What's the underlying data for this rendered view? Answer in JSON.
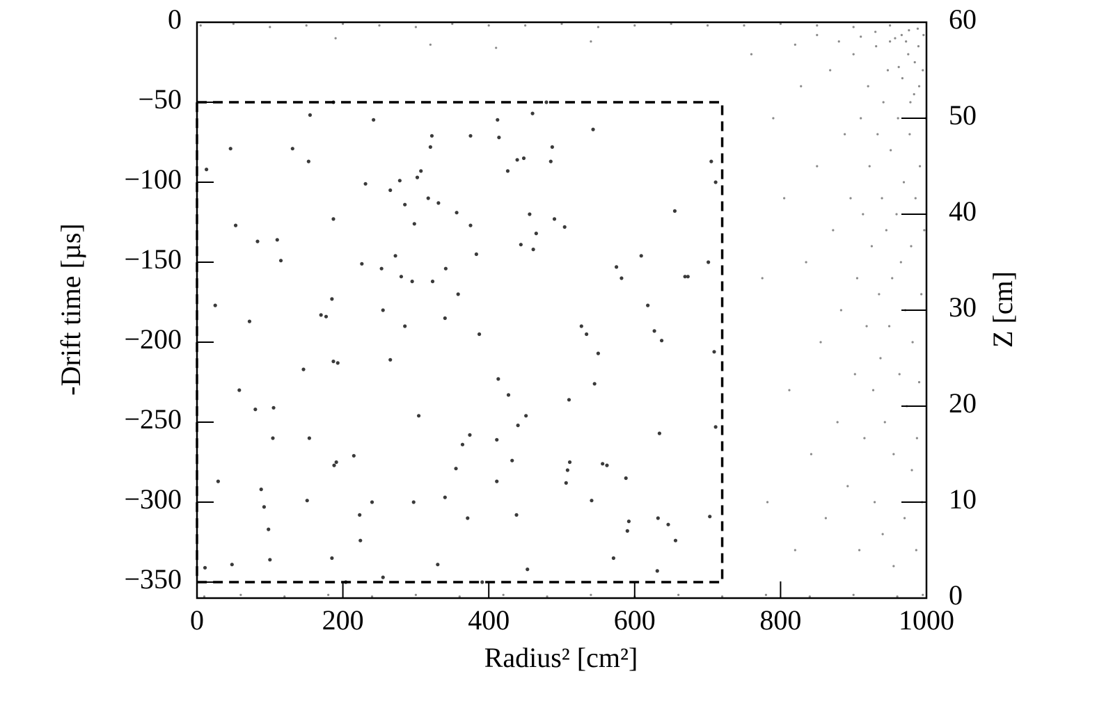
{
  "chart_data": {
    "type": "scatter",
    "xlabel": "Radius² [cm²]",
    "ylabel": "-Drift time [µs]",
    "y2label": "Z [cm]",
    "xlim": [
      0,
      1000
    ],
    "xticks": [
      0,
      200,
      400,
      600,
      800,
      1000
    ],
    "ylim": [
      -360,
      0
    ],
    "yticks": [
      {
        "value": -350,
        "label": "−350"
      },
      {
        "value": -300,
        "label": "−300"
      },
      {
        "value": -250,
        "label": "−250"
      },
      {
        "value": -200,
        "label": "−200"
      },
      {
        "value": -150,
        "label": "−150"
      },
      {
        "value": -100,
        "label": "−100"
      },
      {
        "value": -50,
        "label": "−50"
      },
      0
    ],
    "y2lim": [
      0,
      60
    ],
    "y2ticks": [
      0,
      10,
      20,
      30,
      40,
      50,
      60
    ],
    "box": {
      "x": [
        0,
        720
      ],
      "y": [
        -350,
        -50
      ]
    },
    "series": [
      {
        "color": "#3a3a3a",
        "size": 2.6,
        "x": [
          13,
          46,
          53,
          83,
          110,
          115,
          72,
          25,
          58,
          80,
          105,
          104,
          146,
          154,
          131,
          153,
          155,
          187,
          187,
          185,
          170,
          177,
          187,
          193,
          188,
          191,
          151,
          88,
          92,
          98,
          100,
          48,
          29,
          11,
          185,
          223,
          224,
          215,
          240,
          255,
          204,
          242,
          231,
          265,
          226,
          253,
          272,
          280,
          295,
          255,
          265,
          285,
          278,
          285,
          298,
          302,
          307,
          317,
          331,
          320,
          322,
          323,
          341,
          340,
          356,
          358,
          304,
          297,
          330,
          340,
          355,
          364,
          374,
          371,
          391,
          375,
          375,
          383,
          387,
          412,
          414,
          426,
          439,
          448,
          444,
          461,
          456,
          465,
          460,
          479,
          485,
          487,
          490,
          504,
          413,
          427,
          411,
          432,
          440,
          451,
          411,
          438,
          453,
          510,
          511,
          508,
          506,
          527,
          534,
          550,
          545,
          541,
          543,
          556,
          562,
          571,
          575,
          582,
          588,
          592,
          590,
          609,
          618,
          627,
          637,
          634,
          632,
          631,
          646,
          656,
          655,
          669,
          673,
          701,
          703,
          705,
          711,
          709,
          711
        ],
        "y": [
          -92,
          -79,
          -127,
          -137,
          -136,
          -149,
          -187,
          -177,
          -230,
          -242,
          -241,
          -260,
          -217,
          -260,
          -79,
          -87,
          -58,
          -50,
          -123,
          -173,
          -183,
          -184,
          -212,
          -213,
          -277,
          -275,
          -299,
          -292,
          -303,
          -317,
          -336,
          -339,
          -287,
          -341,
          -335,
          -308,
          -324,
          -271,
          -300,
          -347,
          -350,
          -61,
          -101,
          -105,
          -151,
          -154,
          -146,
          -159,
          -162,
          -180,
          -211,
          -190,
          -99,
          -114,
          -126,
          -97,
          -93,
          -110,
          -113,
          -78,
          -71,
          -162,
          -154,
          -185,
          -119,
          -170,
          -246,
          -300,
          -339,
          -297,
          -279,
          -264,
          -258,
          -310,
          -350,
          -71,
          -127,
          -145,
          -195,
          -61,
          -72,
          -93,
          -86,
          -85,
          -139,
          -142,
          -120,
          -132,
          -57,
          -50,
          -87,
          -78,
          -123,
          -128,
          -223,
          -233,
          -261,
          -274,
          -252,
          -246,
          -287,
          -308,
          -342,
          -236,
          -275,
          -280,
          -288,
          -190,
          -195,
          -207,
          -226,
          -299,
          -67,
          -276,
          -277,
          -335,
          -153,
          -160,
          -285,
          -312,
          -318,
          -146,
          -177,
          -193,
          -199,
          -257,
          -310,
          -343,
          -314,
          -324,
          -118,
          -159,
          -159,
          -150,
          -309,
          -87,
          -100,
          -206,
          -253
        ]
      },
      {
        "color": "#8a8a8a",
        "size": 1.6,
        "x": [
          760,
          775,
          782,
          790,
          805,
          812,
          820,
          828,
          835,
          842,
          850,
          855,
          862,
          868,
          872,
          878,
          883,
          888,
          892,
          896,
          900,
          902,
          905,
          908,
          910,
          913,
          915,
          918,
          920,
          922,
          925,
          927,
          929,
          931,
          933,
          935,
          937,
          939,
          941,
          943,
          945,
          947,
          949,
          951,
          953,
          955,
          957,
          959,
          961,
          963,
          965,
          967,
          969,
          971,
          973,
          975,
          977,
          979,
          981,
          983,
          985,
          987,
          989,
          991,
          993,
          995,
          997,
          999,
          986,
          970,
          955,
          940,
          990,
          980,
          994,
          966,
          976,
          988,
          996,
          950,
          930,
          910,
          880,
          850,
          820,
          990,
          984,
          978,
          972,
          962,
          5,
          50,
          100,
          150,
          200,
          250,
          300,
          350,
          400,
          450,
          500,
          550,
          600,
          650,
          700,
          750,
          800,
          850,
          900,
          950,
          320,
          410,
          190,
          540,
          10,
          60,
          120,
          180,
          240,
          300,
          360,
          420,
          480,
          540,
          600,
          660,
          720,
          780,
          840,
          900,
          960,
          995
        ],
        "y": [
          -20,
          -160,
          -300,
          -60,
          -110,
          -230,
          -330,
          -40,
          -150,
          -270,
          -90,
          -200,
          -310,
          -30,
          -130,
          -250,
          -180,
          -70,
          -290,
          -110,
          -20,
          -220,
          -160,
          -330,
          -60,
          -120,
          -260,
          -190,
          -40,
          -90,
          -140,
          -230,
          -300,
          -15,
          -70,
          -170,
          -210,
          -110,
          -50,
          -250,
          -130,
          -30,
          -190,
          -80,
          -160,
          -270,
          -10,
          -120,
          -60,
          -220,
          -150,
          -35,
          -100,
          -180,
          -240,
          -20,
          -70,
          -140,
          -200,
          -45,
          -110,
          -260,
          -15,
          -90,
          -170,
          -30,
          -130,
          -60,
          -330,
          -310,
          -340,
          -320,
          -225,
          -280,
          -300,
          -8,
          -5,
          -4,
          -8,
          -12,
          -6,
          -9,
          -12,
          -8,
          -14,
          -40,
          -25,
          -50,
          -12,
          -28,
          -2,
          -1,
          -3,
          -2,
          -1,
          -2,
          -3,
          -1,
          -2,
          -2,
          -1,
          -3,
          -2,
          -1,
          -2,
          -2,
          -1,
          -2,
          -3,
          -2,
          -14,
          -16,
          -10,
          -12,
          -359,
          -358,
          -359,
          -358,
          -359,
          -358,
          -359,
          -358,
          -359,
          -358,
          -359,
          -358,
          -359,
          -358,
          -359,
          -358,
          -359,
          -358
        ]
      }
    ]
  }
}
